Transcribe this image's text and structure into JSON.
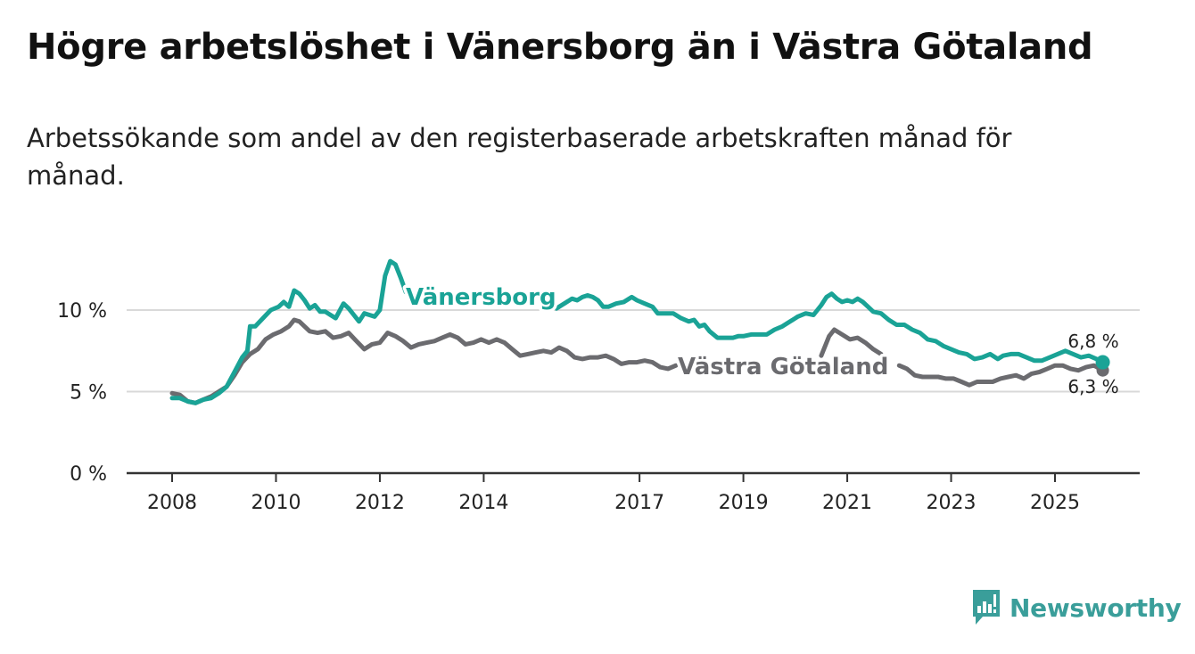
{
  "title": "Högre arbetslöshet i Vänersborg än i Västra Götaland",
  "subtitle": "Arbetssökande som andel av den registerbaserade arbetskraften månad för månad.",
  "brand": {
    "name": "Newsworthy",
    "icon": "newsworthy-logo-icon",
    "color": "#3a9e9a"
  },
  "colors": {
    "vanersborg": "#1aa396",
    "vastra_gotaland": "#6b6b6f",
    "grid": "#d9d9d9",
    "axis": "#333333"
  },
  "chart_data": {
    "type": "line",
    "title": "Högre arbetslöshet i Vänersborg än i Västra Götaland",
    "xlabel": "",
    "ylabel": "",
    "xlim": [
      2008,
      2026.8
    ],
    "ylim": [
      0,
      12
    ],
    "y_ticks": [
      {
        "value": 0,
        "label": "0 %"
      },
      {
        "value": 5,
        "label": "5 %"
      },
      {
        "value": 10,
        "label": "10 %"
      }
    ],
    "x_ticks": [
      {
        "value": 2008,
        "label": "2008"
      },
      {
        "value": 2010,
        "label": "2010"
      },
      {
        "value": 2012,
        "label": "2012"
      },
      {
        "value": 2014,
        "label": "2014"
      },
      {
        "value": 2017,
        "label": "2017"
      },
      {
        "value": 2019,
        "label": "2019"
      },
      {
        "value": 2021,
        "label": "2021"
      },
      {
        "value": 2023,
        "label": "2023"
      },
      {
        "value": 2025,
        "label": "2025"
      }
    ],
    "series": [
      {
        "name": "Vänersborg",
        "label": "Vänersborg",
        "color": "#1aa396",
        "end_label": "6,8 %",
        "points": [
          [
            2008.0,
            4.6
          ],
          [
            2008.15,
            4.6
          ],
          [
            2008.3,
            4.4
          ],
          [
            2008.45,
            4.3
          ],
          [
            2008.6,
            4.5
          ],
          [
            2008.75,
            4.6
          ],
          [
            2008.9,
            4.9
          ],
          [
            2009.05,
            5.3
          ],
          [
            2009.2,
            6.2
          ],
          [
            2009.35,
            7.1
          ],
          [
            2009.45,
            7.5
          ],
          [
            2009.5,
            9.0
          ],
          [
            2009.6,
            9.0
          ],
          [
            2009.75,
            9.5
          ],
          [
            2009.9,
            10.0
          ],
          [
            2010.05,
            10.2
          ],
          [
            2010.15,
            10.5
          ],
          [
            2010.25,
            10.2
          ],
          [
            2010.35,
            11.2
          ],
          [
            2010.45,
            11.0
          ],
          [
            2010.55,
            10.6
          ],
          [
            2010.65,
            10.1
          ],
          [
            2010.75,
            10.3
          ],
          [
            2010.85,
            9.9
          ],
          [
            2010.95,
            9.9
          ],
          [
            2011.05,
            9.7
          ],
          [
            2011.15,
            9.5
          ],
          [
            2011.3,
            10.4
          ],
          [
            2011.4,
            10.1
          ],
          [
            2011.5,
            9.7
          ],
          [
            2011.6,
            9.3
          ],
          [
            2011.7,
            9.8
          ],
          [
            2011.8,
            9.7
          ],
          [
            2011.9,
            9.6
          ],
          [
            2012.0,
            10.0
          ],
          [
            2012.1,
            12.1
          ],
          [
            2012.2,
            13.0
          ],
          [
            2012.3,
            12.8
          ],
          [
            2012.4,
            12.0
          ],
          [
            2012.5,
            11.1
          ]
        ],
        "points_b": [
          [
            2015.4,
            10.1
          ],
          [
            2015.5,
            10.3
          ],
          [
            2015.6,
            10.5
          ],
          [
            2015.7,
            10.7
          ],
          [
            2015.8,
            10.6
          ],
          [
            2015.9,
            10.8
          ],
          [
            2016.0,
            10.9
          ],
          [
            2016.1,
            10.8
          ],
          [
            2016.2,
            10.6
          ],
          [
            2016.3,
            10.2
          ],
          [
            2016.4,
            10.2
          ],
          [
            2016.55,
            10.4
          ],
          [
            2016.7,
            10.5
          ],
          [
            2016.85,
            10.8
          ],
          [
            2016.95,
            10.6
          ],
          [
            2017.1,
            10.4
          ],
          [
            2017.25,
            10.2
          ],
          [
            2017.35,
            9.8
          ],
          [
            2017.5,
            9.8
          ],
          [
            2017.65,
            9.8
          ],
          [
            2017.8,
            9.5
          ],
          [
            2017.95,
            9.3
          ],
          [
            2018.05,
            9.4
          ],
          [
            2018.15,
            9.0
          ],
          [
            2018.25,
            9.1
          ],
          [
            2018.35,
            8.7
          ],
          [
            2018.5,
            8.3
          ],
          [
            2018.65,
            8.3
          ],
          [
            2018.8,
            8.3
          ],
          [
            2018.9,
            8.4
          ],
          [
            2019.0,
            8.4
          ],
          [
            2019.15,
            8.5
          ],
          [
            2019.3,
            8.5
          ],
          [
            2019.45,
            8.5
          ],
          [
            2019.6,
            8.8
          ],
          [
            2019.75,
            9.0
          ],
          [
            2019.9,
            9.3
          ],
          [
            2020.05,
            9.6
          ],
          [
            2020.2,
            9.8
          ],
          [
            2020.35,
            9.7
          ],
          [
            2020.5,
            10.3
          ],
          [
            2020.6,
            10.8
          ],
          [
            2020.7,
            11.0
          ],
          [
            2020.8,
            10.7
          ],
          [
            2020.9,
            10.5
          ],
          [
            2021.0,
            10.6
          ],
          [
            2021.1,
            10.5
          ],
          [
            2021.2,
            10.7
          ],
          [
            2021.3,
            10.5
          ],
          [
            2021.4,
            10.2
          ],
          [
            2021.5,
            9.9
          ],
          [
            2021.65,
            9.8
          ],
          [
            2021.8,
            9.4
          ],
          [
            2021.95,
            9.1
          ],
          [
            2022.1,
            9.1
          ],
          [
            2022.25,
            8.8
          ],
          [
            2022.4,
            8.6
          ],
          [
            2022.55,
            8.2
          ],
          [
            2022.7,
            8.1
          ],
          [
            2022.85,
            7.8
          ],
          [
            2023.0,
            7.6
          ],
          [
            2023.15,
            7.4
          ],
          [
            2023.3,
            7.3
          ],
          [
            2023.45,
            7.0
          ],
          [
            2023.6,
            7.1
          ],
          [
            2023.75,
            7.3
          ],
          [
            2023.9,
            7.0
          ],
          [
            2024.0,
            7.2
          ],
          [
            2024.15,
            7.3
          ],
          [
            2024.3,
            7.3
          ],
          [
            2024.45,
            7.1
          ],
          [
            2024.6,
            6.9
          ],
          [
            2024.75,
            6.9
          ],
          [
            2024.9,
            7.1
          ],
          [
            2025.05,
            7.3
          ],
          [
            2025.2,
            7.5
          ],
          [
            2025.35,
            7.3
          ],
          [
            2025.5,
            7.1
          ],
          [
            2025.65,
            7.2
          ],
          [
            2025.8,
            7.0
          ],
          [
            2025.92,
            6.8
          ]
        ]
      },
      {
        "name": "Västra Götaland",
        "label": "Västra Götaland",
        "color": "#6b6b6f",
        "end_label": "6,3 %",
        "points": [
          [
            2008.0,
            4.9
          ],
          [
            2008.15,
            4.8
          ],
          [
            2008.3,
            4.4
          ],
          [
            2008.45,
            4.3
          ],
          [
            2008.6,
            4.5
          ],
          [
            2008.75,
            4.7
          ],
          [
            2008.9,
            5.0
          ],
          [
            2009.05,
            5.3
          ],
          [
            2009.2,
            6.0
          ],
          [
            2009.35,
            6.8
          ],
          [
            2009.5,
            7.3
          ],
          [
            2009.65,
            7.6
          ],
          [
            2009.8,
            8.2
          ],
          [
            2009.95,
            8.5
          ],
          [
            2010.1,
            8.7
          ],
          [
            2010.25,
            9.0
          ],
          [
            2010.35,
            9.4
          ],
          [
            2010.45,
            9.3
          ],
          [
            2010.55,
            9.0
          ],
          [
            2010.65,
            8.7
          ],
          [
            2010.8,
            8.6
          ],
          [
            2010.95,
            8.7
          ],
          [
            2011.1,
            8.3
          ],
          [
            2011.25,
            8.4
          ],
          [
            2011.4,
            8.6
          ],
          [
            2011.55,
            8.1
          ],
          [
            2011.7,
            7.6
          ],
          [
            2011.85,
            7.9
          ],
          [
            2012.0,
            8.0
          ],
          [
            2012.15,
            8.6
          ],
          [
            2012.3,
            8.4
          ],
          [
            2012.45,
            8.1
          ],
          [
            2012.6,
            7.7
          ],
          [
            2012.75,
            7.9
          ],
          [
            2012.9,
            8.0
          ],
          [
            2013.05,
            8.1
          ],
          [
            2013.2,
            8.3
          ],
          [
            2013.35,
            8.5
          ],
          [
            2013.5,
            8.3
          ],
          [
            2013.65,
            7.9
          ],
          [
            2013.8,
            8.0
          ],
          [
            2013.95,
            8.2
          ],
          [
            2014.1,
            8.0
          ],
          [
            2014.25,
            8.2
          ],
          [
            2014.4,
            8.0
          ],
          [
            2014.55,
            7.6
          ],
          [
            2014.7,
            7.2
          ],
          [
            2014.85,
            7.3
          ],
          [
            2015.0,
            7.4
          ],
          [
            2015.15,
            7.5
          ],
          [
            2015.3,
            7.4
          ],
          [
            2015.45,
            7.7
          ],
          [
            2015.6,
            7.5
          ],
          [
            2015.75,
            7.1
          ],
          [
            2015.9,
            7.0
          ],
          [
            2016.05,
            7.1
          ],
          [
            2016.2,
            7.1
          ],
          [
            2016.35,
            7.2
          ],
          [
            2016.5,
            7.0
          ],
          [
            2016.65,
            6.7
          ],
          [
            2016.8,
            6.8
          ],
          [
            2016.95,
            6.8
          ],
          [
            2017.1,
            6.9
          ],
          [
            2017.25,
            6.8
          ],
          [
            2017.4,
            6.5
          ],
          [
            2017.55,
            6.4
          ],
          [
            2017.7,
            6.6
          ]
        ],
        "points_b": [
          [
            2020.5,
            7.2
          ],
          [
            2020.65,
            8.4
          ],
          [
            2020.75,
            8.8
          ],
          [
            2020.9,
            8.5
          ],
          [
            2021.05,
            8.2
          ],
          [
            2021.2,
            8.3
          ],
          [
            2021.35,
            8.0
          ],
          [
            2021.5,
            7.6
          ],
          [
            2021.65,
            7.3
          ]
        ],
        "points_c": [
          [
            2022.0,
            6.6
          ],
          [
            2022.15,
            6.4
          ],
          [
            2022.3,
            6.0
          ],
          [
            2022.45,
            5.9
          ],
          [
            2022.6,
            5.9
          ],
          [
            2022.75,
            5.9
          ],
          [
            2022.9,
            5.8
          ],
          [
            2023.05,
            5.8
          ],
          [
            2023.2,
            5.6
          ],
          [
            2023.35,
            5.4
          ],
          [
            2023.5,
            5.6
          ],
          [
            2023.65,
            5.6
          ],
          [
            2023.8,
            5.6
          ],
          [
            2023.95,
            5.8
          ],
          [
            2024.1,
            5.9
          ],
          [
            2024.25,
            6.0
          ],
          [
            2024.4,
            5.8
          ],
          [
            2024.55,
            6.1
          ],
          [
            2024.7,
            6.2
          ],
          [
            2024.85,
            6.4
          ],
          [
            2025.0,
            6.6
          ],
          [
            2025.15,
            6.6
          ],
          [
            2025.3,
            6.4
          ],
          [
            2025.45,
            6.3
          ],
          [
            2025.6,
            6.5
          ],
          [
            2025.75,
            6.6
          ],
          [
            2025.92,
            6.3
          ]
        ]
      }
    ]
  }
}
